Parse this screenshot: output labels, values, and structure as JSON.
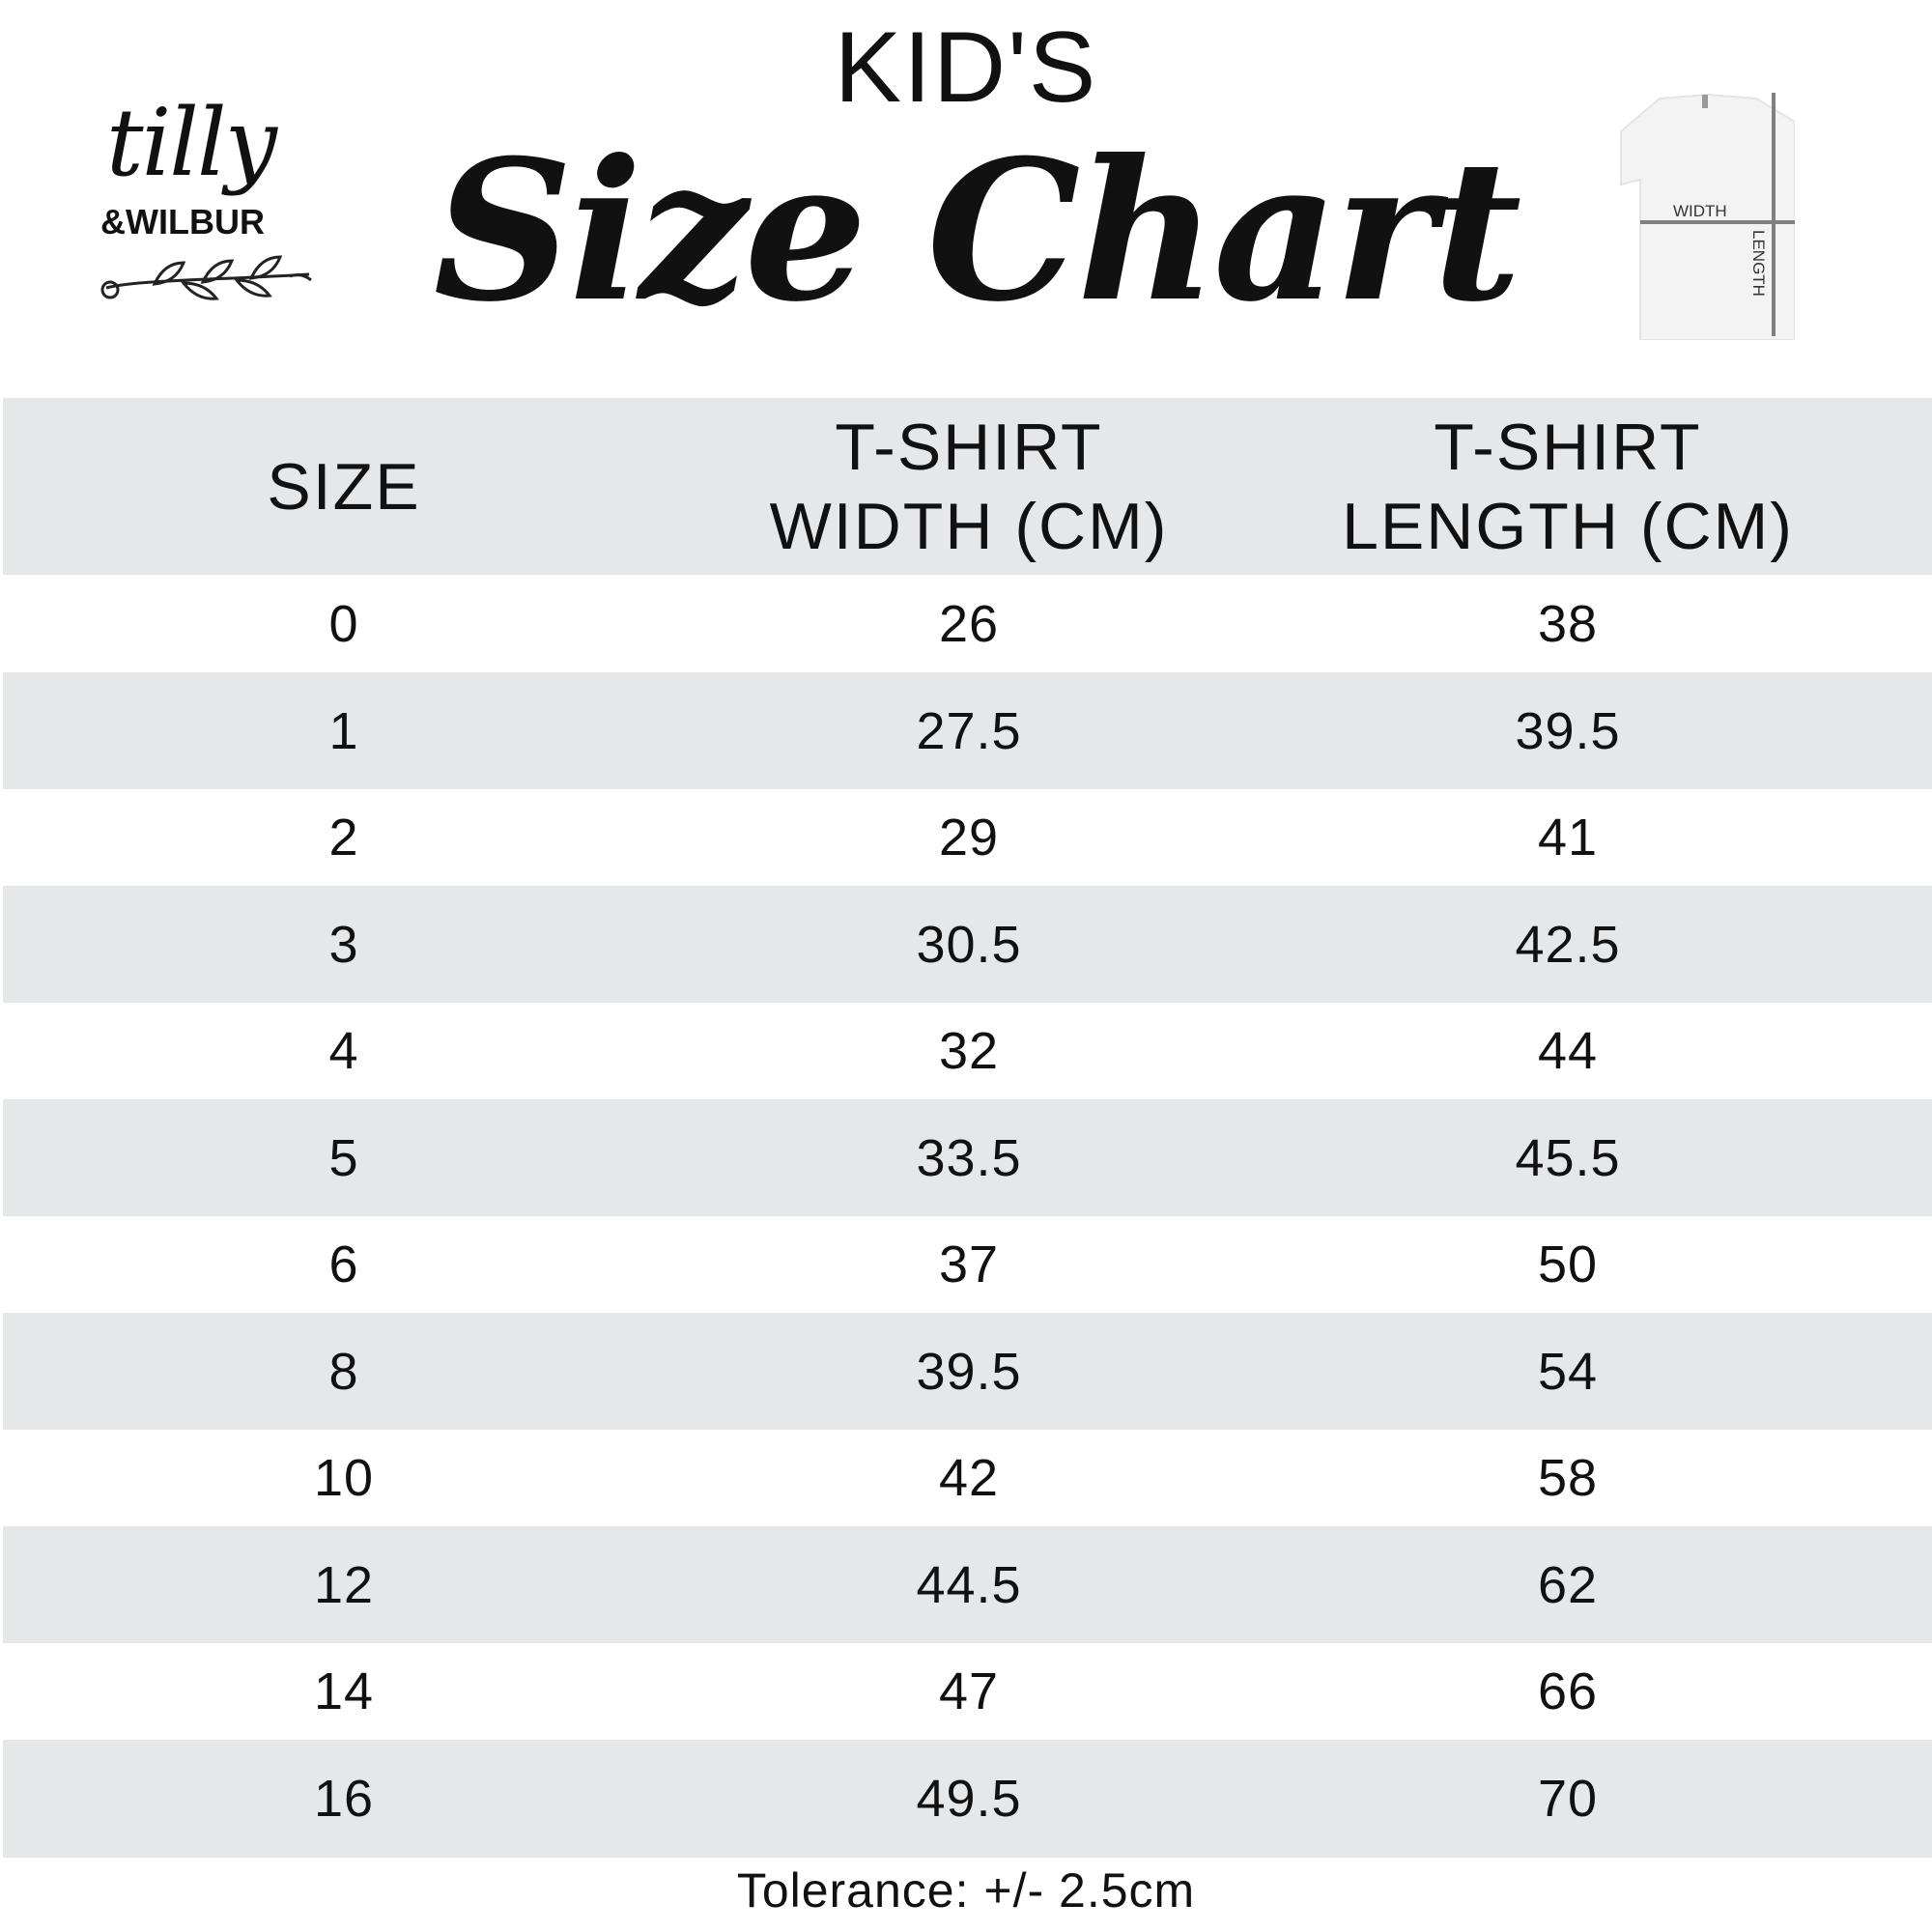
{
  "logo": {
    "line1": "tilly",
    "line2": "&WILBUR"
  },
  "title": {
    "kicker": "KID'S",
    "main": "Size Chart"
  },
  "diagram": {
    "width_label": "WIDTH",
    "length_label": "LENGTH"
  },
  "table": {
    "headers": [
      {
        "line1": "SIZE",
        "line2": ""
      },
      {
        "line1": "T-SHIRT",
        "line2": "WIDTH (CM)"
      },
      {
        "line1": "T-SHIRT",
        "line2": "LENGTH (CM)"
      }
    ],
    "rows": [
      {
        "size": "0",
        "width": "26",
        "length": "38"
      },
      {
        "size": "1",
        "width": "27.5",
        "length": "39.5"
      },
      {
        "size": "2",
        "width": "29",
        "length": "41"
      },
      {
        "size": "3",
        "width": "30.5",
        "length": "42.5"
      },
      {
        "size": "4",
        "width": "32",
        "length": "44"
      },
      {
        "size": "5",
        "width": "33.5",
        "length": "45.5"
      },
      {
        "size": "6",
        "width": "37",
        "length": "50"
      },
      {
        "size": "8",
        "width": "39.5",
        "length": "54"
      },
      {
        "size": "10",
        "width": "42",
        "length": "58"
      },
      {
        "size": "12",
        "width": "44.5",
        "length": "62"
      },
      {
        "size": "14",
        "width": "47",
        "length": "66"
      },
      {
        "size": "16",
        "width": "49.5",
        "length": "70"
      }
    ],
    "stripe_color": "#e6e7e9"
  },
  "footer": {
    "tolerance": "Tolerance: +/- 2.5cm"
  }
}
